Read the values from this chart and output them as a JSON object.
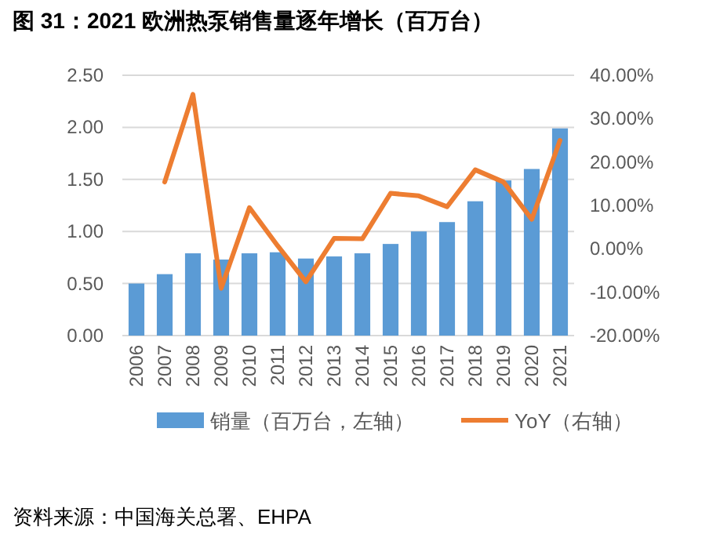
{
  "chart_data": {
    "type": "bar",
    "title": "图 31：2021 欧洲热泵销售量逐年增长（百万台）",
    "categories": [
      "2006",
      "2007",
      "2008",
      "2009",
      "2010",
      "2011",
      "2012",
      "2013",
      "2014",
      "2015",
      "2016",
      "2017",
      "2018",
      "2019",
      "2020",
      "2021"
    ],
    "series": [
      {
        "name": "销量（百万台，左轴）",
        "color": "#5b9bd5",
        "values": [
          0.5,
          0.59,
          0.79,
          0.73,
          0.79,
          0.8,
          0.74,
          0.76,
          0.79,
          0.88,
          1.0,
          1.09,
          1.29,
          1.49,
          1.6,
          1.99
        ]
      },
      {
        "name": "YoY（右轴）",
        "type": "line",
        "axis": "y2",
        "color": "#ed7d31",
        "values": [
          null,
          15.4,
          35.6,
          -9.1,
          9.5,
          0.7,
          -7.6,
          2.4,
          2.3,
          12.8,
          12.2,
          9.7,
          18.2,
          15.4,
          6.8,
          25.0
        ]
      }
    ],
    "ylim": [
      0,
      2.5
    ],
    "yticks": [
      {
        "value": 0,
        "label": "0.00"
      },
      {
        "value": 0.5,
        "label": "0.50"
      },
      {
        "value": 1,
        "label": "1.00"
      },
      {
        "value": 1.5,
        "label": "1.50"
      },
      {
        "value": 2,
        "label": "2.00"
      },
      {
        "value": 2.5,
        "label": "2.50"
      }
    ],
    "y2lim": [
      -20,
      40
    ],
    "y2ticks": [
      {
        "value": -20,
        "label": "-20.00%"
      },
      {
        "value": -10,
        "label": "-10.00%"
      },
      {
        "value": 0,
        "label": "0.00%"
      },
      {
        "value": 10,
        "label": "10.00%"
      },
      {
        "value": 20,
        "label": "20.00%"
      },
      {
        "value": 30,
        "label": "30.00%"
      },
      {
        "value": 40,
        "label": "40.00%"
      }
    ],
    "grid": "y",
    "legend": "bottom",
    "annotations": [
      "资料来源：中国海关总署、EHPA"
    ]
  }
}
